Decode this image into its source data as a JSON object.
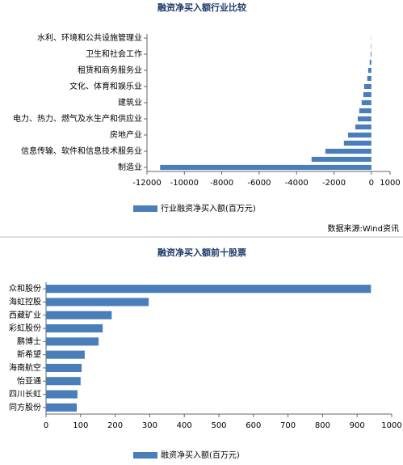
{
  "chart_data": [
    {
      "type": "hbar",
      "title": "融资净买入额行业比较",
      "categories": [
        "水利、环境和公共设施管理业",
        null,
        "卫生和社会工作",
        null,
        "租赁和商务服务业",
        null,
        "文化、体育和娱乐业",
        null,
        "建筑业",
        null,
        "电力、热力、燃气及水生产和供应业",
        null,
        "房地产业",
        null,
        "信息传输、软件和信息技术服务业",
        null,
        "制造业"
      ],
      "series": [
        {
          "name": "行业融资净买入额(百万元)",
          "color": "#4a7ebb",
          "values": [
            -10,
            -20,
            -40,
            -90,
            -170,
            -220,
            -390,
            -430,
            -520,
            -650,
            -730,
            -860,
            -1250,
            -1470,
            -2460,
            -3200,
            -11300
          ]
        }
      ],
      "xlim": [
        -12000,
        1000
      ],
      "xticks": [
        -12000,
        -10000,
        -8000,
        -6000,
        -4000,
        -2000,
        0,
        1000
      ],
      "source": "数据来源:Wind资讯"
    },
    {
      "type": "hbar",
      "title": "融资净买入额前十股票",
      "categories": [
        "众和股份",
        "海虹控股",
        "西藏矿业",
        "彩虹股份",
        "鹏博士",
        "新希望",
        "海南航空",
        "怡亚通",
        "四川长虹",
        "同方股份"
      ],
      "series": [
        {
          "name": "融资净买入额(百万元)",
          "color": "#4a7ebb",
          "values": [
            940,
            297,
            190,
            164,
            152,
            112,
            103,
            100,
            91,
            89
          ]
        }
      ],
      "xlim": [
        0,
        1000
      ],
      "xticks": [
        0,
        100,
        200,
        300,
        400,
        500,
        600,
        700,
        800,
        900,
        1000
      ]
    }
  ]
}
